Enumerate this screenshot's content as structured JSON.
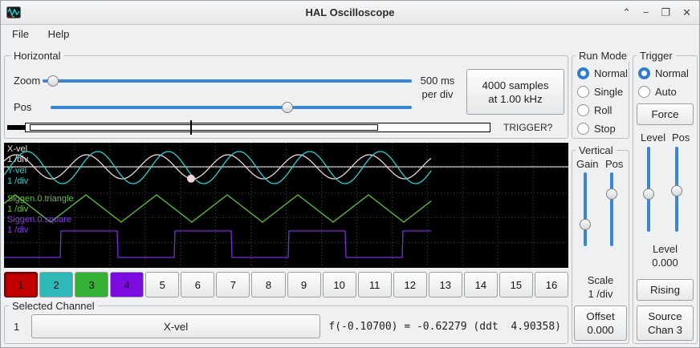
{
  "colors": {
    "accent": "#2f7cd0",
    "slider": "#3a86d5"
  },
  "window": {
    "title": "HAL Oscilloscope",
    "controls": {
      "shade": "⌃",
      "minimize": "−",
      "maximize": "❐",
      "close": "✕"
    }
  },
  "menu": {
    "items": [
      "File",
      "Help"
    ]
  },
  "horizontal": {
    "title": "Horizontal",
    "zoom_label": "Zoom",
    "pos_label": "Pos",
    "per_div": [
      "500 ms",
      "per div"
    ],
    "samples_button": [
      "4000 samples",
      "at 1.00 kHz"
    ],
    "trigger_question": "TRIGGER?"
  },
  "run_mode": {
    "title": "Run Mode",
    "options": [
      {
        "label": "Normal",
        "selected": true
      },
      {
        "label": "Single",
        "selected": false
      },
      {
        "label": "Roll",
        "selected": false
      },
      {
        "label": "Stop",
        "selected": false
      }
    ]
  },
  "trigger": {
    "title": "Trigger",
    "options": [
      {
        "label": "Normal",
        "selected": true
      },
      {
        "label": "Auto",
        "selected": false
      }
    ],
    "force_button": "Force",
    "level_label": "Level",
    "pos_label": "Pos",
    "level_caption": "Level",
    "level_value": "0.000",
    "rising_button": "Rising",
    "source_button": [
      "Source",
      "Chan 3"
    ]
  },
  "vertical": {
    "title": "Vertical",
    "gain_label": "Gain",
    "pos_label": "Pos",
    "scale_caption": "Scale",
    "scale_value": "1 /div",
    "offset_button": [
      "Offset",
      "0.000"
    ]
  },
  "scope": {
    "grid": {
      "cols": 16,
      "rows": 5,
      "dot_color": "#3a5a3a"
    },
    "channels": [
      {
        "name": "X-vel",
        "scale": "1 /div",
        "color": "#f4dede"
      },
      {
        "name": "Y-vel",
        "scale": "1 /div",
        "color": "#1fd6d6"
      },
      {
        "name": "Siggen.0.triangle",
        "scale": "1 /div",
        "color": "#5dc437"
      },
      {
        "name": "Siggen.0.square",
        "scale": "1 /div",
        "color": "#8a3cee"
      }
    ],
    "waveforms": {
      "trace_end": 532,
      "zero_line": {
        "y": 30,
        "color": "#ffffff"
      },
      "marker": {
        "x": 233,
        "r": 5,
        "color": "#eed6d6"
      },
      "series": [
        {
          "name": "X-vel",
          "type": "sine",
          "color": "#f4d6d6",
          "center": 30,
          "amplitude": 15,
          "period": 88,
          "phase": 0.5
        },
        {
          "name": "Y-vel",
          "type": "sine",
          "color": "#1fd6d6",
          "center": 31,
          "amplitude": 20,
          "period": 88,
          "phase": 5.8
        },
        {
          "name": "Siggen.0.triangle",
          "type": "triangle",
          "color": "#5dc437",
          "center": 82,
          "amplitude": 17,
          "period": 88,
          "phase": 30
        },
        {
          "name": "Siggen.0.square",
          "type": "square",
          "color": "#7a2ce0",
          "high_y": 110,
          "low_y": 143,
          "period": 142,
          "duty": 0.5,
          "phase": 71
        }
      ]
    }
  },
  "channel_buttons": [
    {
      "label": "1",
      "color": "#c30101",
      "selected": true
    },
    {
      "label": "2",
      "color": "#2fb8b8",
      "selected": false
    },
    {
      "label": "3",
      "color": "#35b235",
      "selected": false
    },
    {
      "label": "4",
      "color": "#7c0be0",
      "selected": false
    },
    {
      "label": "5",
      "selected": false
    },
    {
      "label": "6",
      "selected": false
    },
    {
      "label": "7",
      "selected": false
    },
    {
      "label": "8",
      "selected": false
    },
    {
      "label": "9",
      "selected": false
    },
    {
      "label": "10",
      "selected": false
    },
    {
      "label": "11",
      "selected": false
    },
    {
      "label": "12",
      "selected": false
    },
    {
      "label": "13",
      "selected": false
    },
    {
      "label": "14",
      "selected": false
    },
    {
      "label": "15",
      "selected": false
    },
    {
      "label": "16",
      "selected": false
    }
  ],
  "selected_channel": {
    "title": "Selected Channel",
    "number": "1",
    "name_button": "X-vel",
    "readout": "f(-0.10700) = -0.62279 (ddt  4.90358)"
  }
}
